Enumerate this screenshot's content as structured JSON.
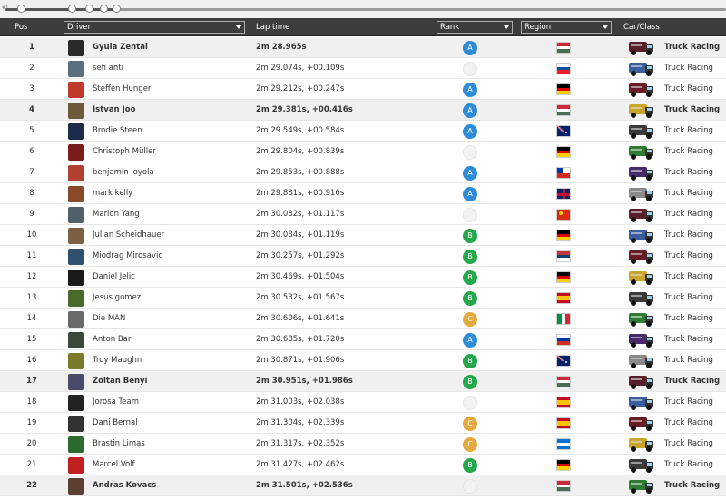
{
  "slider": {
    "label": "#1",
    "progress": 0.15,
    "knob_count": 5
  },
  "header": {
    "pos": "Pos",
    "driver": "Driver",
    "lap_time": "Lap time",
    "rank": "Rank",
    "region": "Region",
    "car_class": "Car/Class"
  },
  "colors": {
    "rank_A": "#2e8bd6",
    "rank_B": "#25a84b",
    "rank_C": "#e4a93d",
    "header_bg": "#3d3d3d",
    "highlight_row": "#f0f0f0"
  },
  "rows": [
    {
      "pos": "1",
      "driver": "Gyula Zentai",
      "lap": "2m 28.965s",
      "rank": "A",
      "region": "Hungary",
      "car_class": "Truck Racing",
      "highlight": true
    },
    {
      "pos": "2",
      "driver": "sefi anti",
      "lap": "2m 29.074s, +00.109s",
      "rank": "",
      "region": "Slovakia",
      "car_class": "Truck Racing",
      "highlight": false
    },
    {
      "pos": "3",
      "driver": "Steffen Hunger",
      "lap": "2m 29.212s, +00.247s",
      "rank": "A",
      "region": "Germany",
      "car_class": "Truck Racing",
      "highlight": false
    },
    {
      "pos": "4",
      "driver": "Istvan Joo",
      "lap": "2m 29.381s, +00.416s",
      "rank": "A",
      "region": "Hungary",
      "car_class": "Truck Racing",
      "highlight": true
    },
    {
      "pos": "5",
      "driver": "Brodie Steen",
      "lap": "2m 29.549s, +00.584s",
      "rank": "A",
      "region": "Australia",
      "car_class": "Truck Racing",
      "highlight": false
    },
    {
      "pos": "6",
      "driver": "Christoph Müller",
      "lap": "2m 29.804s, +00.839s",
      "rank": "",
      "region": "Germany",
      "car_class": "Truck Racing",
      "highlight": false
    },
    {
      "pos": "7",
      "driver": "benjamin loyola",
      "lap": "2m 29.853s, +00.888s",
      "rank": "A",
      "region": "Chile",
      "car_class": "Truck Racing",
      "highlight": false
    },
    {
      "pos": "8",
      "driver": "mark kelly",
      "lap": "2m 29.881s, +00.916s",
      "rank": "A",
      "region": "United Kingdom",
      "car_class": "Truck Racing",
      "highlight": false
    },
    {
      "pos": "9",
      "driver": "Marlon Yang",
      "lap": "2m 30.082s, +01.117s",
      "rank": "",
      "region": "China",
      "car_class": "Truck Racing",
      "highlight": false
    },
    {
      "pos": "10",
      "driver": "Julian Scheidhauer",
      "lap": "2m 30.084s, +01.119s",
      "rank": "B",
      "region": "Germany",
      "car_class": "Truck Racing",
      "highlight": false
    },
    {
      "pos": "11",
      "driver": "Miodrag Mirosavic",
      "lap": "2m 30.257s, +01.292s",
      "rank": "B",
      "region": "Serbia",
      "car_class": "Truck Racing",
      "highlight": false
    },
    {
      "pos": "12",
      "driver": "Daniel Jelic",
      "lap": "2m 30.469s, +01.504s",
      "rank": "B",
      "region": "Germany",
      "car_class": "Truck Racing",
      "highlight": false
    },
    {
      "pos": "13",
      "driver": "Jesus gomez",
      "lap": "2m 30.532s, +01.567s",
      "rank": "B",
      "region": "Spain",
      "car_class": "Truck Racing",
      "highlight": false
    },
    {
      "pos": "14",
      "driver": "Die MAN",
      "lap": "2m 30.606s, +01.641s",
      "rank": "C",
      "region": "Italy",
      "car_class": "Truck Racing",
      "highlight": false
    },
    {
      "pos": "15",
      "driver": "Anton Bar",
      "lap": "2m 30.685s, +01.720s",
      "rank": "A",
      "region": "Russia",
      "car_class": "Truck Racing",
      "highlight": false
    },
    {
      "pos": "16",
      "driver": "Troy Maughn",
      "lap": "2m 30.871s, +01.906s",
      "rank": "B",
      "region": "Australia",
      "car_class": "Truck Racing",
      "highlight": false
    },
    {
      "pos": "17",
      "driver": "Zoltan Benyi",
      "lap": "2m 30.951s, +01.986s",
      "rank": "B",
      "region": "Hungary",
      "car_class": "Truck Racing",
      "highlight": true
    },
    {
      "pos": "18",
      "driver": "Jorosa Team",
      "lap": "2m 31.003s, +02.038s",
      "rank": "",
      "region": "Spain",
      "car_class": "Truck Racing",
      "highlight": false
    },
    {
      "pos": "19",
      "driver": "Dani Bernal",
      "lap": "2m 31.304s, +02.339s",
      "rank": "C",
      "region": "Spain",
      "car_class": "Truck Racing",
      "highlight": false
    },
    {
      "pos": "20",
      "driver": "Brastin Limas",
      "lap": "2m 31.317s, +02.352s",
      "rank": "C",
      "region": "Honduras",
      "car_class": "Truck Racing",
      "highlight": false
    },
    {
      "pos": "21",
      "driver": "Marcel Volf",
      "lap": "2m 31.427s, +02.462s",
      "rank": "B",
      "region": "Germany",
      "car_class": "Truck Racing",
      "highlight": false
    },
    {
      "pos": "22",
      "driver": "Andras Kovacs",
      "lap": "2m 31.501s, +02.536s",
      "rank": "",
      "region": "Hungary",
      "car_class": "Truck Racing",
      "highlight": true
    }
  ]
}
